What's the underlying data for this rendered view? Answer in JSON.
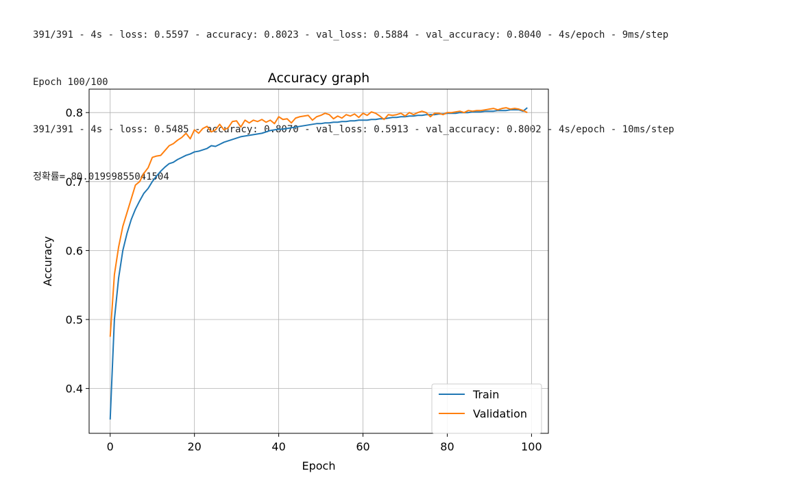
{
  "console": {
    "lines": [
      "391/391 - 4s - loss: 0.5597 - accuracy: 0.8023 - val_loss: 0.5884 - val_accuracy: 0.8040 - 4s/epoch - 9ms/step",
      "Epoch 100/100",
      "391/391 - 4s - loss: 0.5485 - accuracy: 0.8070 - val_loss: 0.5913 - val_accuracy: 0.8002 - 4s/epoch - 10ms/step",
      "정확률= 80.01999855041504"
    ]
  },
  "chart_data": {
    "type": "line",
    "title": "Accuracy graph",
    "xlabel": "Epoch",
    "ylabel": "Accuracy",
    "xlim": [
      -5,
      104
    ],
    "ylim": [
      0.335,
      0.834
    ],
    "xticks": [
      0,
      20,
      40,
      60,
      80,
      100
    ],
    "yticks": [
      0.4,
      0.5,
      0.6,
      0.7,
      0.8
    ],
    "grid": true,
    "legend": "lower right",
    "series": [
      {
        "name": "Train",
        "color": "#1f77b4",
        "values": [
          0.355,
          0.5,
          0.56,
          0.6,
          0.625,
          0.645,
          0.66,
          0.672,
          0.683,
          0.69,
          0.7,
          0.708,
          0.715,
          0.721,
          0.726,
          0.728,
          0.732,
          0.735,
          0.738,
          0.74,
          0.743,
          0.744,
          0.746,
          0.748,
          0.752,
          0.751,
          0.754,
          0.757,
          0.759,
          0.761,
          0.763,
          0.765,
          0.766,
          0.767,
          0.768,
          0.769,
          0.77,
          0.772,
          0.774,
          0.775,
          0.776,
          0.776,
          0.777,
          0.778,
          0.779,
          0.78,
          0.781,
          0.782,
          0.783,
          0.784,
          0.784,
          0.785,
          0.785,
          0.786,
          0.786,
          0.787,
          0.787,
          0.788,
          0.788,
          0.789,
          0.789,
          0.789,
          0.79,
          0.79,
          0.791,
          0.791,
          0.792,
          0.793,
          0.793,
          0.794,
          0.794,
          0.795,
          0.795,
          0.796,
          0.796,
          0.797,
          0.797,
          0.797,
          0.798,
          0.798,
          0.799,
          0.799,
          0.799,
          0.8,
          0.8,
          0.8,
          0.801,
          0.801,
          0.801,
          0.802,
          0.802,
          0.802,
          0.803,
          0.803,
          0.803,
          0.804,
          0.804,
          0.804,
          0.802,
          0.807
        ]
      },
      {
        "name": "Validation",
        "color": "#ff7f0e",
        "values": [
          0.475,
          0.565,
          0.605,
          0.635,
          0.655,
          0.675,
          0.695,
          0.7,
          0.712,
          0.72,
          0.735,
          0.737,
          0.738,
          0.745,
          0.752,
          0.755,
          0.76,
          0.764,
          0.77,
          0.762,
          0.775,
          0.77,
          0.777,
          0.78,
          0.772,
          0.775,
          0.783,
          0.775,
          0.778,
          0.787,
          0.788,
          0.779,
          0.789,
          0.785,
          0.789,
          0.787,
          0.79,
          0.786,
          0.789,
          0.784,
          0.794,
          0.79,
          0.791,
          0.785,
          0.792,
          0.794,
          0.795,
          0.796,
          0.789,
          0.794,
          0.796,
          0.799,
          0.797,
          0.791,
          0.795,
          0.792,
          0.797,
          0.795,
          0.798,
          0.793,
          0.799,
          0.796,
          0.801,
          0.799,
          0.795,
          0.79,
          0.797,
          0.796,
          0.797,
          0.799,
          0.795,
          0.8,
          0.797,
          0.8,
          0.802,
          0.8,
          0.794,
          0.799,
          0.799,
          0.797,
          0.8,
          0.8,
          0.801,
          0.802,
          0.8,
          0.803,
          0.802,
          0.803,
          0.803,
          0.804,
          0.805,
          0.806,
          0.804,
          0.806,
          0.807,
          0.805,
          0.806,
          0.805,
          0.803,
          0.8
        ]
      }
    ]
  }
}
